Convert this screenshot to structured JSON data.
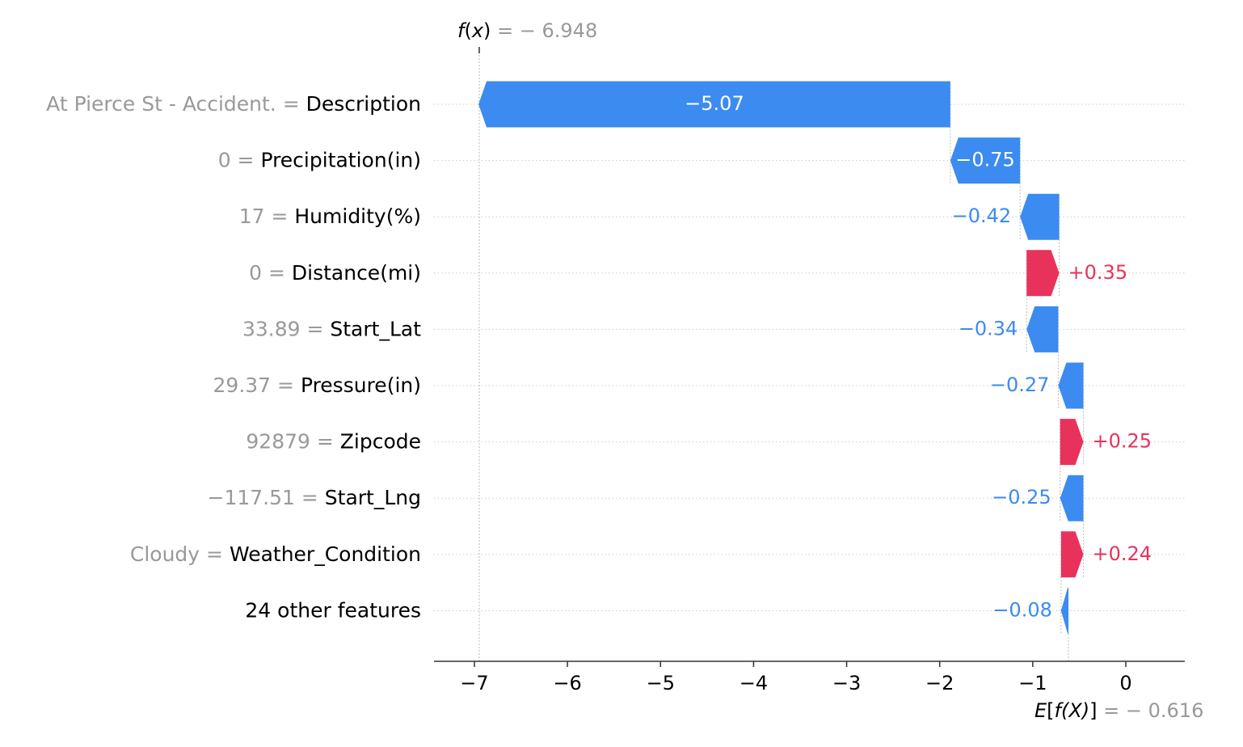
{
  "chart_data": {
    "type": "bar",
    "subtype": "waterfall",
    "title": "",
    "xlabel": "",
    "ylabel": "",
    "xlim": [
      -7.4,
      0.63
    ],
    "x_ticks": [
      -7,
      -6,
      -5,
      -4,
      -3,
      -2,
      -1,
      0
    ],
    "x_tick_labels": [
      "−7",
      "−6",
      "−5",
      "−4",
      "−3",
      "−2",
      "−1",
      "0"
    ],
    "grid": "dotted horizontal guides per row",
    "fx": {
      "prefix": "f",
      "var": "x",
      "label_suffix": " = − 6.948",
      "value": -6.948
    },
    "expected_value": {
      "prefix": "E",
      "inner": "f(X)",
      "label_suffix": " = − 0.616",
      "value": -0.616
    },
    "rows": [
      {
        "value_text": "At Pierce St - Accident.",
        "feature": "Description",
        "contribution": -5.07,
        "label": "−5.07"
      },
      {
        "value_text": "0",
        "feature": "Precipitation(in)",
        "contribution": -0.75,
        "label": "−0.75"
      },
      {
        "value_text": "17",
        "feature": "Humidity(%)",
        "contribution": -0.42,
        "label": "−0.42"
      },
      {
        "value_text": "0",
        "feature": "Distance(mi)",
        "contribution": 0.35,
        "label": "+0.35"
      },
      {
        "value_text": "33.89",
        "feature": "Start_Lat",
        "contribution": -0.34,
        "label": "−0.34"
      },
      {
        "value_text": "29.37",
        "feature": "Pressure(in)",
        "contribution": -0.27,
        "label": "−0.27"
      },
      {
        "value_text": "92879",
        "feature": "Zipcode",
        "contribution": 0.25,
        "label": "+0.25"
      },
      {
        "value_text": "−117.51",
        "feature": "Start_Lng",
        "contribution": -0.25,
        "label": "−0.25"
      },
      {
        "value_text": "Cloudy",
        "feature": "Weather_Condition",
        "contribution": 0.24,
        "label": "+0.24"
      },
      {
        "value_text": "",
        "feature": "24 other features",
        "contribution": -0.08,
        "label": "−0.08"
      }
    ],
    "colors": {
      "negative": "#3b8bf0",
      "positive": "#e8325c",
      "muted_text": "#999999",
      "axis": "#333333",
      "guide": "#cccccc"
    }
  }
}
